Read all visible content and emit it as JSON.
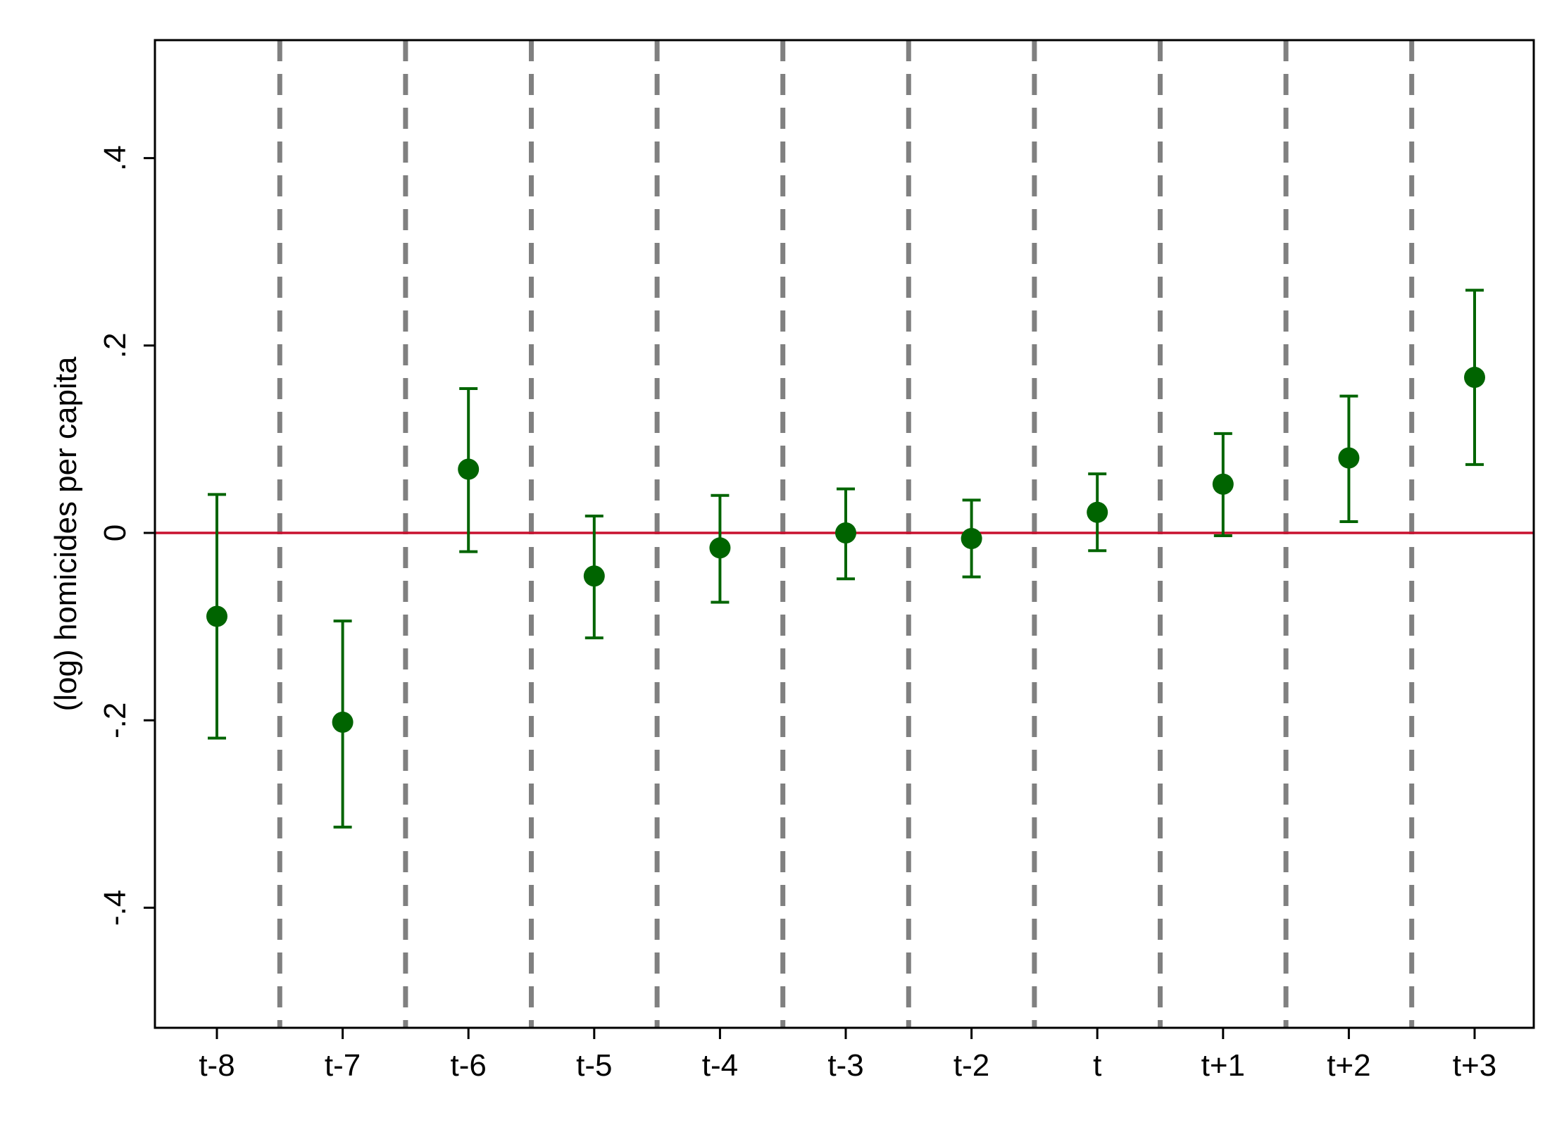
{
  "chart_data": {
    "type": "scatter",
    "title": "",
    "xlabel": "",
    "ylabel": "(log) homicides per capita",
    "categories": [
      "t-8",
      "t-7",
      "t-6",
      "t-5",
      "t-4",
      "t-3",
      "t-2",
      "t",
      "t+1",
      "t+2",
      "t+3"
    ],
    "series": [
      {
        "values": [
          -0.089,
          -0.202,
          0.068,
          -0.046,
          -0.016,
          0.0,
          -0.006,
          0.022,
          0.052,
          0.08,
          0.166
        ],
        "ci_lower": [
          -0.219,
          -0.314,
          -0.02,
          -0.112,
          -0.074,
          -0.049,
          -0.047,
          -0.019,
          -0.003,
          0.012,
          0.073
        ],
        "ci_upper": [
          0.041,
          -0.094,
          0.154,
          0.018,
          0.04,
          0.047,
          0.035,
          0.063,
          0.106,
          0.146,
          0.259
        ],
        "color": "#006400"
      }
    ],
    "yticks": [
      -0.4,
      -0.2,
      0,
      0.2,
      0.4
    ],
    "ytick_labels": [
      "-.4",
      "-.2",
      "0",
      ".2",
      ".4"
    ],
    "ylim": [
      -0.42,
      0.42
    ],
    "reference_line": {
      "y": 0,
      "color": "#c8102e"
    },
    "separator_color": "#808080",
    "grid": false,
    "legend": "none"
  }
}
